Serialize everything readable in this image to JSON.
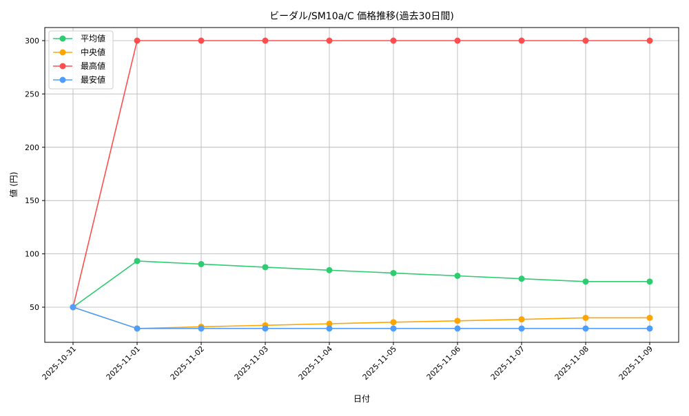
{
  "chart_data": {
    "type": "line",
    "title": "ビーダル/SM10a/C 価格推移(過去30日間)",
    "xlabel": "日付",
    "ylabel": "値 (円)",
    "categories": [
      "2025-10-31",
      "2025-11-01",
      "2025-11-02",
      "2025-11-03",
      "2025-11-04",
      "2025-11-05",
      "2025-11-06",
      "2025-11-07",
      "2025-11-08",
      "2025-11-09"
    ],
    "ylim": [
      17,
      312
    ],
    "yticks": [
      50,
      100,
      150,
      200,
      250,
      300
    ],
    "grid": true,
    "legend_position": "top-left",
    "series": [
      {
        "name": "平均値",
        "color": "#2ecc71",
        "values": [
          50,
          93.3,
          90.4,
          87.5,
          84.7,
          82.0,
          79.4,
          76.7,
          74.0,
          74.0
        ]
      },
      {
        "name": "中央値",
        "color": "#ffa500",
        "values": [
          50,
          30,
          31.6,
          33.0,
          34.5,
          35.9,
          37.2,
          38.6,
          40.0,
          40.0
        ]
      },
      {
        "name": "最高値",
        "color": "#ff4d4d",
        "values": [
          50,
          300,
          300,
          300,
          300,
          300,
          300,
          300,
          300,
          300
        ]
      },
      {
        "name": "最安値",
        "color": "#4d9eff",
        "values": [
          50,
          30,
          30,
          30,
          30,
          30,
          30,
          30,
          30,
          30
        ]
      }
    ]
  }
}
